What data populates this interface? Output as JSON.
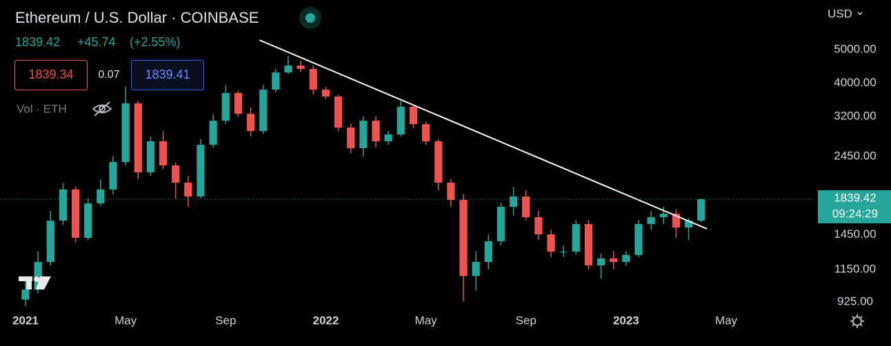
{
  "header": {
    "title": "Ethereum / U.S. Dollar · COINBASE",
    "last": "1839.42",
    "change": "+45.74",
    "change_pct": "(+2.55%)",
    "bid": "1839.34",
    "spread": "0.07",
    "ask": "1839.41",
    "volume": "Vol · ETH",
    "currency": "USD"
  },
  "chart_data": {
    "type": "candlestick",
    "log_scale": true,
    "up_color": "#26a69a",
    "down_color": "#ef5350",
    "x": [
      0,
      0.5,
      1,
      1.5,
      2,
      2.5,
      3,
      3.5,
      4,
      4.5,
      5,
      5.5,
      6,
      6.5,
      7,
      7.5,
      8,
      8.5,
      9,
      9.5,
      10,
      10.5,
      11,
      11.5,
      12,
      12.5,
      13,
      13.5,
      14,
      14.5,
      15,
      15.5,
      16,
      16.5,
      17,
      17.5,
      18,
      18.5,
      19,
      19.5,
      20,
      20.5,
      21,
      21.5,
      22,
      22.5,
      23,
      23.5,
      24,
      24.5,
      25,
      25.5,
      26,
      26.5,
      27
    ],
    "open": [
      940,
      1005,
      1209,
      1594,
      1963,
      1421,
      1789,
      1963,
      2359,
      3492,
      2202,
      2709,
      2306,
      2055,
      1873,
      2647,
      3109,
      3741,
      3256,
      2902,
      3827,
      4294,
      4496,
      4394,
      3827,
      3656,
      2969,
      2588,
      3109,
      2709,
      2836,
      3413,
      3038,
      2709,
      2055,
      1831,
      1101,
      1209,
      1389,
      1748,
      1873,
      1631,
      1454,
      1295,
      1295,
      1558,
      1182,
      1238,
      1209,
      1267,
      1558,
      1631,
      1669,
      1522,
      1594
    ],
    "high": [
      1080,
      1300,
      1700,
      2050,
      2000,
      1850,
      2100,
      2450,
      3900,
      3550,
      2800,
      2900,
      2350,
      2150,
      2750,
      3250,
      3950,
      3800,
      3400,
      3950,
      4400,
      4800,
      4650,
      4500,
      3900,
      3700,
      3050,
      3200,
      3200,
      2900,
      3550,
      3450,
      3100,
      2750,
      2100,
      1900,
      1300,
      1450,
      1800,
      2000,
      1950,
      1700,
      1500,
      1350,
      1600,
      1600,
      1280,
      1300,
      1300,
      1600,
      1700,
      1750,
      1720,
      1620,
      1850
    ],
    "low": [
      900,
      980,
      1180,
      1550,
      1380,
      1400,
      1760,
      1900,
      2300,
      2100,
      2150,
      2250,
      1850,
      1750,
      1850,
      2600,
      3050,
      3200,
      2800,
      2850,
      3750,
      4250,
      4300,
      3700,
      3600,
      2900,
      2500,
      2450,
      2600,
      2650,
      2800,
      2950,
      2650,
      1950,
      1750,
      930,
      1000,
      1150,
      1350,
      1650,
      1600,
      1400,
      1250,
      1250,
      1270,
      1150,
      1080,
      1150,
      1180,
      1250,
      1500,
      1560,
      1420,
      1400,
      1580
    ],
    "close": [
      1005,
      1209,
      1594,
      1963,
      1421,
      1789,
      1963,
      2359,
      3492,
      2202,
      2709,
      2306,
      2055,
      1873,
      2647,
      3109,
      3741,
      3256,
      2902,
      3827,
      4294,
      4496,
      4394,
      3827,
      3656,
      2969,
      2588,
      3109,
      2709,
      2836,
      3413,
      3038,
      2709,
      2055,
      1831,
      1101,
      1209,
      1389,
      1748,
      1873,
      1631,
      1454,
      1295,
      1295,
      1558,
      1182,
      1238,
      1209,
      1267,
      1558,
      1631,
      1669,
      1522,
      1594,
      1839.42
    ],
    "trendline": {
      "x": [
        9.35,
        27.23
      ],
      "values": [
        5330,
        1509
      ],
      "color": "#ffffff"
    },
    "last_price": 1839.42,
    "countdown": "09:24:29",
    "xlim": [
      -1.02,
      31.5
    ],
    "ylim": [
      856,
      6970
    ],
    "xticks": [
      {
        "value": 0,
        "label": "2021"
      },
      {
        "value": 4,
        "label": "May"
      },
      {
        "value": 8,
        "label": "Sep"
      },
      {
        "value": 12,
        "label": "2022"
      },
      {
        "value": 16,
        "label": "May"
      },
      {
        "value": 20,
        "label": "Sep"
      },
      {
        "value": 24,
        "label": "2023"
      },
      {
        "value": 28,
        "label": "May"
      }
    ],
    "yticks": [
      {
        "value": 925,
        "label": "925.00"
      },
      {
        "value": 1150,
        "label": "1150.00"
      },
      {
        "value": 1450,
        "label": "1450.00"
      },
      {
        "value": 2450,
        "label": "2450.00"
      },
      {
        "value": 3200,
        "label": "3200.00"
      },
      {
        "value": 4000,
        "label": "4000.00"
      },
      {
        "value": 5000,
        "label": "5000.00"
      }
    ]
  }
}
